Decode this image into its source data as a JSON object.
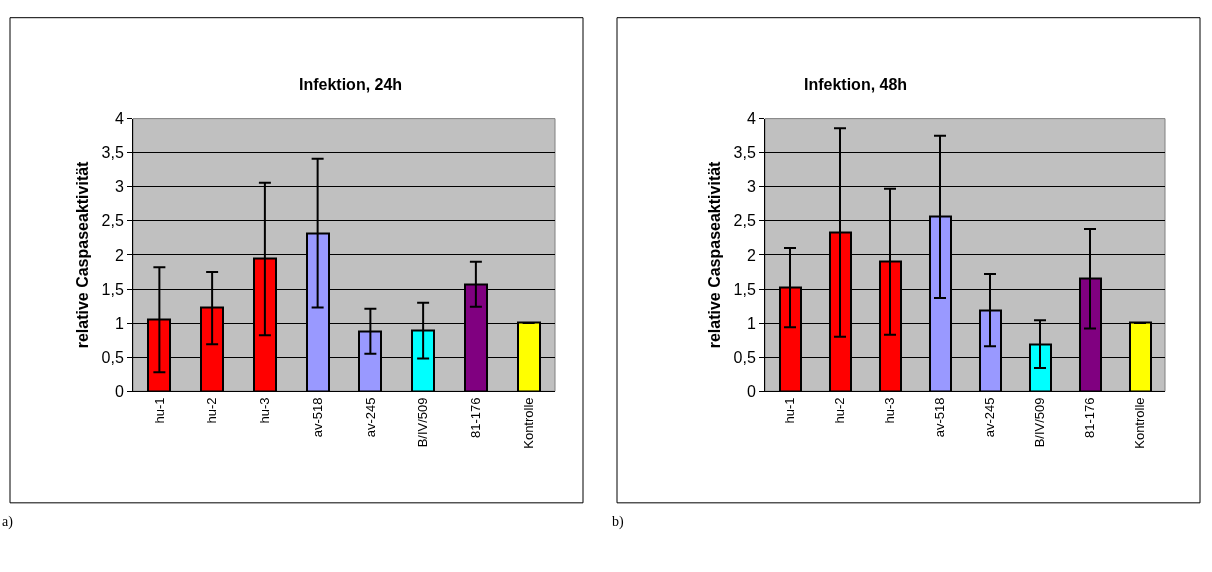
{
  "chart_data": [
    {
      "type": "bar",
      "title": "Infektion, 24h",
      "ylabel": "relative Caspaseaktivität",
      "categories": [
        "hu-1",
        "hu-2",
        "hu-3",
        "av-518",
        "av-245",
        "B/IV/509",
        "81-176",
        "Kontrolle"
      ],
      "values": [
        1.05,
        1.22,
        1.94,
        2.32,
        0.88,
        0.89,
        1.57,
        1.0
      ],
      "errors": [
        0.77,
        0.53,
        1.12,
        1.09,
        0.33,
        0.41,
        0.33,
        null
      ],
      "colors": [
        "#ff0000",
        "#ff0000",
        "#ff0000",
        "#9999ff",
        "#9999ff",
        "#00ffff",
        "#800080",
        "#ffff00"
      ],
      "ylim": [
        0,
        4
      ],
      "yticks": [
        0,
        {
          "value": 0.5,
          "label": "0,5"
        },
        1,
        {
          "value": 1.5,
          "label": "1,5"
        },
        2,
        {
          "value": 2.5,
          "label": "2,5"
        },
        3,
        {
          "value": 3.5,
          "label": "3,5"
        },
        4
      ],
      "grid": "y",
      "annotations": [
        "a)"
      ]
    },
    {
      "type": "bar",
      "title": "Infektion, 48h",
      "ylabel": "relative Caspaseaktivität",
      "categories": [
        "hu-1",
        "hu-2",
        "hu-3",
        "av-518",
        "av-245",
        "B/IV/509",
        "81-176",
        "Kontrolle"
      ],
      "values": [
        1.52,
        2.33,
        1.9,
        2.56,
        1.19,
        0.69,
        1.65,
        1.0
      ],
      "errors": [
        0.58,
        1.53,
        1.07,
        1.19,
        0.53,
        0.35,
        0.73,
        null
      ],
      "colors": [
        "#ff0000",
        "#ff0000",
        "#ff0000",
        "#9999ff",
        "#9999ff",
        "#00ffff",
        "#800080",
        "#ffff00"
      ],
      "ylim": [
        0,
        4
      ],
      "yticks": [
        0,
        {
          "value": 0.5,
          "label": "0,5"
        },
        1,
        {
          "value": 1.5,
          "label": "1,5"
        },
        2,
        {
          "value": 2.5,
          "label": "2,5"
        },
        3,
        {
          "value": 3.5,
          "label": "3,5"
        },
        4
      ],
      "grid": "y",
      "annotations": [
        "b)"
      ]
    }
  ]
}
